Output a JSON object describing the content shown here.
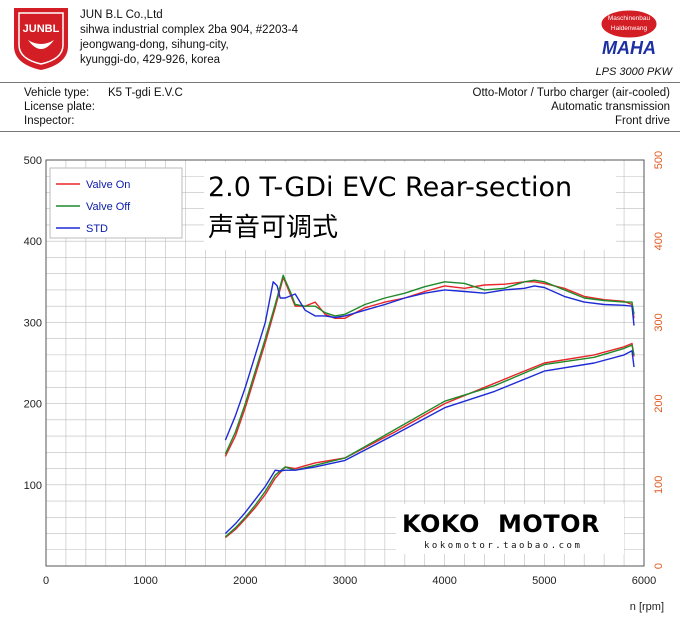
{
  "header": {
    "logo_text": "JUNBL",
    "company": "JUN B.L Co.,Ltd",
    "address_lines": [
      "sihwa industrial complex 2ba 904, #2203-4",
      "jeongwang-dong, sihung-city,",
      "kyunggi-do, 429-926, korea"
    ],
    "maha_top": "Maschinenbau",
    "maha_bottom": "Haldenwang",
    "maha_text": "MAHA",
    "model": "LPS 3000 PKW"
  },
  "info": {
    "vehicle_label": "Vehicle type:",
    "vehicle_value": "K5 T-gdi E.V.C",
    "plate_label": "License plate:",
    "inspector_label": "Inspector:",
    "engine": "Otto-Motor / Turbo charger (air-cooled)",
    "transmission": "Automatic transmission",
    "drive": "Front drive"
  },
  "overlay": {
    "title": "2.0 T-GDi EVC Rear-section",
    "subtitle": "声音可调式",
    "brand_left": "KOKO",
    "brand_right": "MOTOR",
    "brand_url": "kokomotor.taobao.com"
  },
  "colors": {
    "valve_on": "#e8262a",
    "valve_off": "#1f8a2a",
    "std": "#1d2bd6",
    "right_axis": "#e05a22",
    "grid": "#bdbdbd"
  },
  "chart_data": {
    "type": "line",
    "xlabel": "n [rpm]",
    "xlim": [
      0,
      6000
    ],
    "ylim": [
      0,
      500
    ],
    "y2lim": [
      0,
      500
    ],
    "xticks": [
      0,
      1000,
      2000,
      3000,
      4000,
      5000,
      6000
    ],
    "yticks": [
      100,
      200,
      300,
      400,
      500
    ],
    "y2ticks": [
      0,
      100,
      200,
      300,
      400,
      500
    ],
    "grid": true,
    "legend_position": "top-left",
    "legend": [
      "Valve On",
      "Valve Off",
      "STD"
    ],
    "series": [
      {
        "name": "Valve On",
        "group": "torque",
        "color": "#e8262a",
        "x": [
          1800,
          1900,
          2000,
          2100,
          2200,
          2300,
          2380,
          2400,
          2450,
          2500,
          2600,
          2700,
          2800,
          2900,
          3000,
          3200,
          3400,
          3600,
          3800,
          4000,
          4200,
          4400,
          4600,
          4800,
          4900,
          5000,
          5200,
          5400,
          5600,
          5800,
          5880,
          5900
        ],
        "y": [
          135,
          160,
          195,
          235,
          275,
          318,
          355,
          350,
          335,
          320,
          320,
          325,
          310,
          305,
          305,
          318,
          325,
          330,
          338,
          345,
          342,
          346,
          347,
          350,
          350,
          348,
          342,
          332,
          328,
          326,
          322,
          305
        ]
      },
      {
        "name": "Valve Off",
        "group": "torque",
        "color": "#1f8a2a",
        "x": [
          1800,
          1900,
          2000,
          2100,
          2200,
          2300,
          2380,
          2400,
          2450,
          2500,
          2600,
          2700,
          2800,
          2900,
          3000,
          3200,
          3400,
          3600,
          3800,
          4000,
          4200,
          4400,
          4600,
          4800,
          4900,
          5000,
          5200,
          5400,
          5600,
          5800,
          5880,
          5900
        ],
        "y": [
          138,
          165,
          200,
          240,
          280,
          322,
          358,
          352,
          338,
          322,
          320,
          320,
          312,
          308,
          310,
          322,
          330,
          336,
          344,
          350,
          348,
          340,
          342,
          350,
          352,
          350,
          340,
          330,
          327,
          325,
          325,
          310
        ]
      },
      {
        "name": "STD",
        "group": "torque",
        "color": "#1d2bd6",
        "x": [
          1800,
          1900,
          2000,
          2100,
          2200,
          2280,
          2320,
          2350,
          2400,
          2500,
          2600,
          2700,
          2800,
          2900,
          3000,
          3200,
          3400,
          3600,
          3800,
          4000,
          4200,
          4400,
          4600,
          4800,
          4900,
          5000,
          5200,
          5400,
          5600,
          5800,
          5880,
          5900
        ],
        "y": [
          155,
          185,
          220,
          260,
          300,
          350,
          345,
          330,
          330,
          335,
          315,
          308,
          308,
          306,
          308,
          315,
          322,
          330,
          336,
          340,
          338,
          336,
          340,
          342,
          345,
          343,
          332,
          325,
          322,
          321,
          320,
          296
        ]
      },
      {
        "name": "Valve On",
        "group": "power",
        "color": "#e8262a",
        "x": [
          1800,
          1900,
          2000,
          2100,
          2200,
          2300,
          2400,
          2500,
          2700,
          3000,
          3500,
          4000,
          4500,
          5000,
          5500,
          5800,
          5880,
          5900
        ],
        "y": [
          35,
          45,
          58,
          72,
          88,
          108,
          122,
          120,
          127,
          133,
          165,
          200,
          225,
          250,
          260,
          270,
          274,
          258
        ]
      },
      {
        "name": "Valve Off",
        "group": "power",
        "color": "#1f8a2a",
        "x": [
          1800,
          1900,
          2000,
          2100,
          2200,
          2300,
          2400,
          2500,
          2700,
          3000,
          3500,
          4000,
          4500,
          5000,
          5500,
          5800,
          5880,
          5900
        ],
        "y": [
          36,
          47,
          60,
          75,
          92,
          112,
          122,
          118,
          124,
          133,
          168,
          203,
          222,
          248,
          257,
          268,
          272,
          260
        ]
      },
      {
        "name": "STD",
        "group": "power",
        "color": "#1d2bd6",
        "x": [
          1800,
          1900,
          2000,
          2100,
          2200,
          2300,
          2350,
          2400,
          2500,
          2700,
          3000,
          3500,
          4000,
          4500,
          5000,
          5500,
          5800,
          5880,
          5900
        ],
        "y": [
          40,
          52,
          66,
          82,
          98,
          118,
          117,
          118,
          118,
          122,
          130,
          162,
          195,
          215,
          240,
          250,
          260,
          265,
          245
        ]
      }
    ]
  }
}
